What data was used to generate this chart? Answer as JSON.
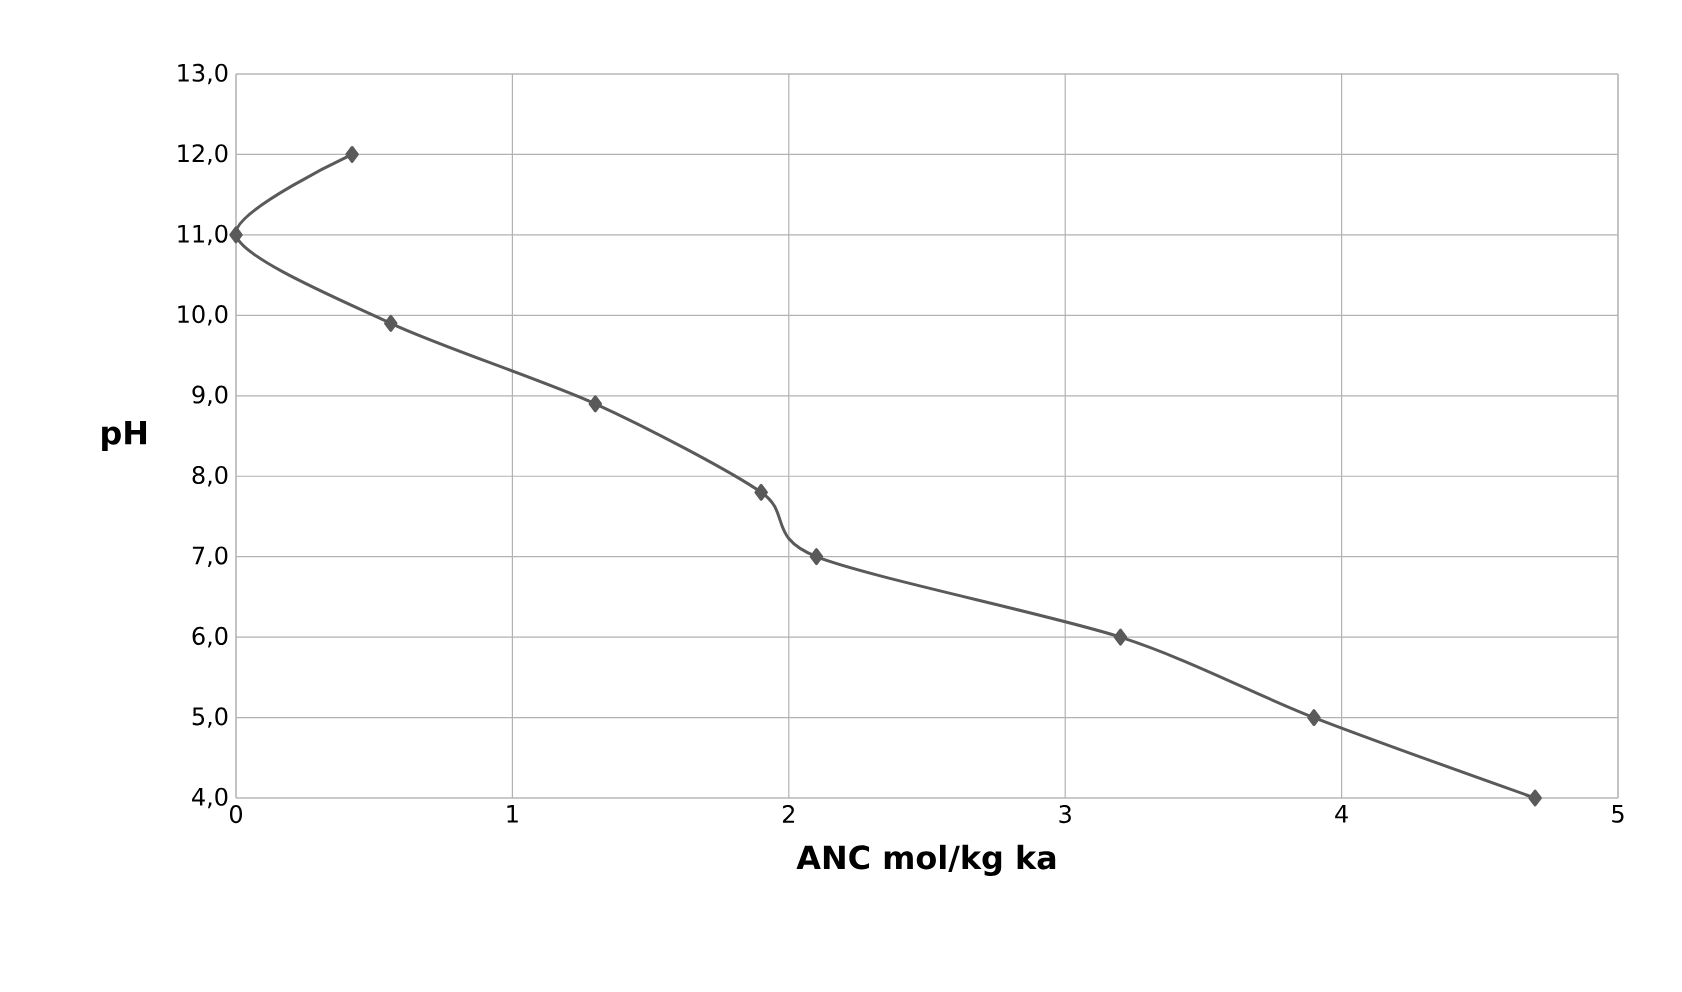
{
  "chart_data": {
    "type": "line",
    "xlabel": "ANC mol/kg ka",
    "ylabel": "pH",
    "x": [
      0.42,
      0,
      0.56,
      1.3,
      1.9,
      2.1,
      3.2,
      3.9,
      4.7
    ],
    "series": [
      {
        "color": "#5a5a5a",
        "values": [
          12.0,
          11.0,
          9.9,
          8.9,
          7.8,
          7.0,
          6.0,
          5.0,
          4.0
        ]
      }
    ],
    "xlim": [
      0,
      5
    ],
    "xticks": [
      0,
      1,
      2,
      3,
      4,
      5
    ],
    "ylim": [
      4,
      13
    ],
    "yticks": [
      {
        "value": 4,
        "label": "4,0"
      },
      {
        "value": 5,
        "label": "5,0"
      },
      {
        "value": 6,
        "label": "6,0"
      },
      {
        "value": 7,
        "label": "7,0"
      },
      {
        "value": 8,
        "label": "8,0"
      },
      {
        "value": 9,
        "label": "9,0"
      },
      {
        "value": 10,
        "label": "10,0"
      },
      {
        "value": 11,
        "label": "11,0"
      },
      {
        "value": 12,
        "label": "12,0"
      },
      {
        "value": 13,
        "label": "13,0"
      }
    ],
    "grid": true,
    "marker": "diamond",
    "line_style": "solid"
  }
}
